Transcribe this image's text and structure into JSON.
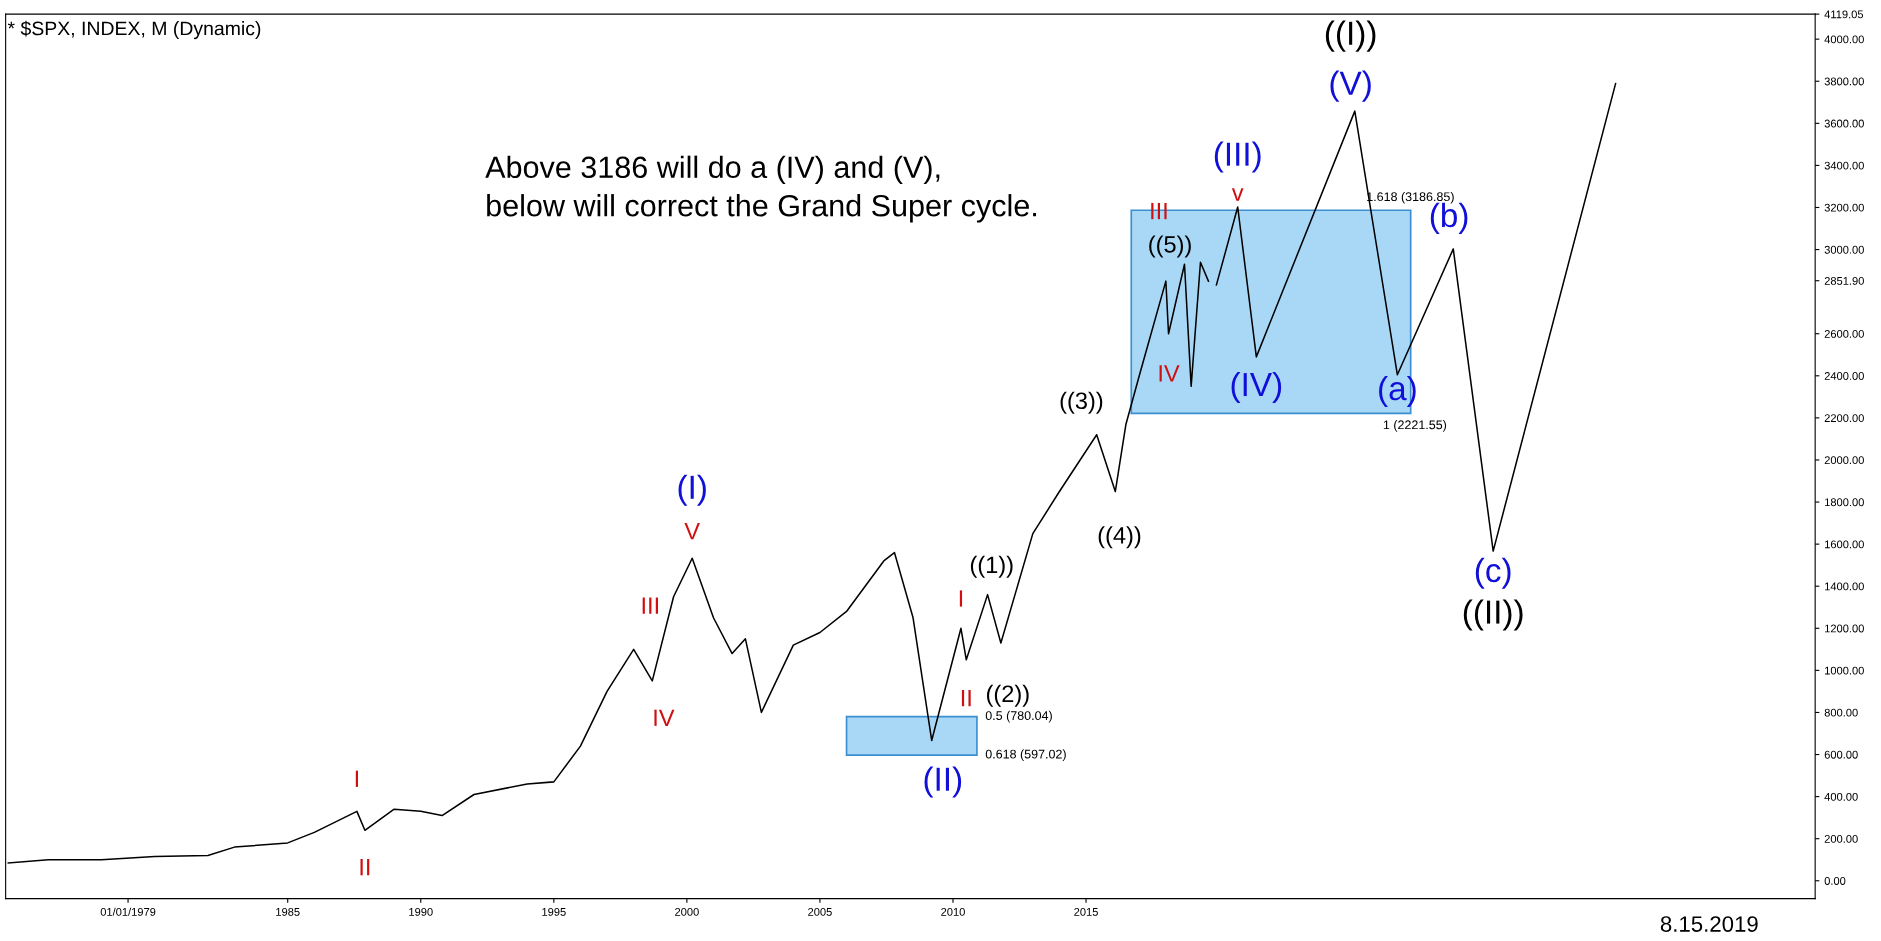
{
  "chart_data": {
    "type": "line",
    "title": "* $SPX, INDEX, M (Dynamic)",
    "xlim": [
      1974.4,
      2042.4
    ],
    "xticks": [
      {
        "value": 1979,
        "label": "01/01/1979"
      },
      1985,
      1990,
      1995,
      2000,
      2005,
      2010,
      2015
    ],
    "ylim": [
      -85,
      4119.05
    ],
    "yticks": [
      {
        "value": 0,
        "label": "0.00"
      },
      {
        "value": 200,
        "label": "200.00"
      },
      {
        "value": 400,
        "label": "400.00"
      },
      {
        "value": 600,
        "label": "600.00"
      },
      {
        "value": 800,
        "label": "800.00"
      },
      {
        "value": 1000,
        "label": "1000.00"
      },
      {
        "value": 1200,
        "label": "1200.00"
      },
      {
        "value": 1400,
        "label": "1400.00"
      },
      {
        "value": 1600,
        "label": "1600.00"
      },
      {
        "value": 1800,
        "label": "1800.00"
      },
      {
        "value": 2000,
        "label": "2000.00"
      },
      {
        "value": 2200,
        "label": "2200.00"
      },
      {
        "value": 2400,
        "label": "2400.00"
      },
      {
        "value": 2600,
        "label": "2600.00"
      },
      {
        "value": 2851.9,
        "label": "2851.90"
      },
      {
        "value": 3000,
        "label": "3000.00"
      },
      {
        "value": 3200,
        "label": "3200.00"
      },
      {
        "value": 3400,
        "label": "3400.00"
      },
      {
        "value": 3600,
        "label": "3600.00"
      },
      {
        "value": 3800,
        "label": "3800.00"
      },
      {
        "value": 4000,
        "label": "4000.00"
      },
      {
        "value": 4119.05,
        "label": "4119.05"
      }
    ],
    "grid": false,
    "legend": false,
    "marker": "none",
    "line_style": "solid",
    "series": [
      {
        "type": "area",
        "color": "#a9d8f7",
        "x": [
          2016.7,
          2016.7,
          2027.2,
          2027.2
        ],
        "values": [
          2221.55,
          3186.85,
          3186.85,
          2221.55
        ]
      },
      {
        "type": "area",
        "color": "#a9d8f7",
        "x": [
          2006.0,
          2006.0,
          2010.9,
          2010.9
        ],
        "values": [
          597.02,
          780.04,
          780.04,
          597.02
        ]
      },
      {
        "color": "#000000",
        "x": [
          1974.5,
          1976,
          1978,
          1980,
          1982,
          1983,
          1985,
          1986,
          1987.6,
          1987.9,
          1989,
          1990,
          1990.8,
          1992,
          1994,
          1995,
          1996,
          1997,
          1998,
          1998.7,
          1999.5,
          2000.2,
          2001,
          2001.7,
          2002.2,
          2002.8,
          2004,
          2005,
          2006,
          2007.4,
          2007.8,
          2008.5,
          2009.2,
          2010.3,
          2010.5,
          2011.3,
          2011.8,
          2013,
          2014,
          2015.4,
          2016.1,
          2016.5,
          2017,
          2018.0,
          2018.1,
          2018.7,
          2018.95,
          2019.3,
          2019.6
        ],
        "values": [
          85,
          100,
          100,
          115,
          120,
          160,
          180,
          230,
          330,
          240,
          340,
          330,
          310,
          410,
          460,
          470,
          640,
          900,
          1100,
          950,
          1350,
          1533,
          1250,
          1080,
          1150,
          800,
          1120,
          1180,
          1280,
          1520,
          1560,
          1250,
          667,
          1200,
          1050,
          1360,
          1130,
          1650,
          1850,
          2120,
          1850,
          2170,
          2400,
          2850,
          2600,
          2930,
          2350,
          2940,
          2850
        ]
      },
      {
        "color": "#000000",
        "x": [
          2019.9,
          2020.7,
          2021.4,
          2025.1,
          2026.7,
          2028.8,
          2030.3,
          2034.9
        ],
        "values": [
          2832,
          3202,
          2490,
          3658,
          2405,
          3003,
          1567,
          3789
        ]
      }
    ],
    "annotations": [
      {
        "text": "I",
        "x": 1987.6,
        "y": 330
      },
      {
        "text": "II",
        "x": 1987.9,
        "y": 240
      },
      {
        "text": "III",
        "x": 1998,
        "y": 1100
      },
      {
        "text": "IV",
        "x": 1998.7,
        "y": 950
      },
      {
        "text": "V",
        "x": 2000.2,
        "y": 1533
      },
      {
        "text": "(I)",
        "x": 2000.2,
        "y": 1533
      },
      {
        "text": "(II)",
        "x": 2009.2,
        "y": 667
      },
      {
        "text": "I",
        "x": 2010.3,
        "y": 1200
      },
      {
        "text": "II",
        "x": 2010.5,
        "y": 1050
      },
      {
        "text": "((1))",
        "x": 2011.3,
        "y": 1360
      },
      {
        "text": "((2))",
        "x": 2011.8,
        "y": 1130
      },
      {
        "text": "((3))",
        "x": 2015.4,
        "y": 2120
      },
      {
        "text": "((4))",
        "x": 2016.1,
        "y": 1850
      },
      {
        "text": "III",
        "x": 2018.0,
        "y": 2850
      },
      {
        "text": "((5))",
        "x": 2018.0,
        "y": 2850
      },
      {
        "text": "IV",
        "x": 2018.1,
        "y": 2600
      },
      {
        "text": "(III)",
        "x": 2020.7,
        "y": 3202
      },
      {
        "text": "v",
        "x": 2020.7,
        "y": 3202
      },
      {
        "text": "(IV)",
        "x": 2021.4,
        "y": 2490
      },
      {
        "text": "((I))",
        "x": 2025.1,
        "y": 3658
      },
      {
        "text": "(V)",
        "x": 2025.1,
        "y": 3658
      },
      {
        "text": "(a)",
        "x": 2026.7,
        "y": 2405
      },
      {
        "text": "(b)",
        "x": 2028.8,
        "y": 3003
      },
      {
        "text": "(c)",
        "x": 2030.3,
        "y": 1567
      },
      {
        "text": "((II))",
        "x": 2030.3,
        "y": 1567
      },
      "Above 3186 will do a (IV) and (V),\nbelow will correct the Grand Super cycle.",
      {
        "text": "0.5 (780.04)",
        "x": 2010.9,
        "y": 780.04
      },
      {
        "text": "0.618 (597.02)",
        "x": 2010.9,
        "y": 597.02
      },
      {
        "text": "1.618 (3186.85)",
        "x": 2027.2,
        "y": 3186.85
      },
      {
        "text": "1 (2221.55)",
        "x": 2027.2,
        "y": 2221.55
      },
      "8.15.2019"
    ]
  }
}
